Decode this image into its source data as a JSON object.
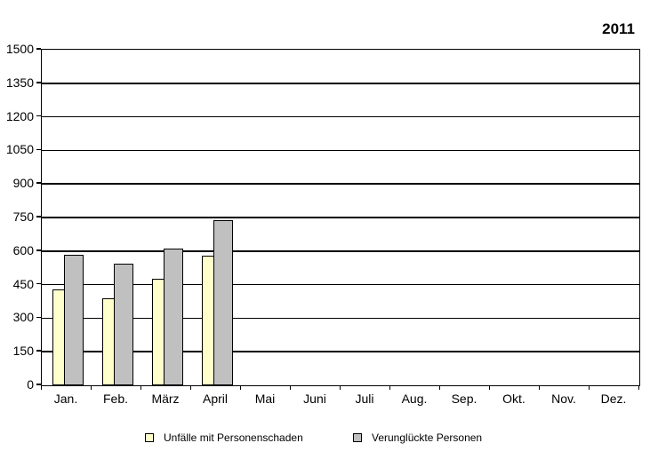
{
  "header": {
    "year_title": "2011"
  },
  "chart_data": {
    "type": "bar",
    "title": "2011",
    "categories": [
      "Jan.",
      "Feb.",
      "März",
      "April",
      "Mai",
      "Juni",
      "Juli",
      "Aug.",
      "Sep.",
      "Okt.",
      "Nov.",
      "Dez."
    ],
    "series": [
      {
        "name": "Unfälle mit Personenschaden",
        "color": "#FFFFCC",
        "values": [
          430,
          387,
          478,
          580,
          null,
          null,
          null,
          null,
          null,
          null,
          null,
          null
        ]
      },
      {
        "name": "Verunglückte Personen",
        "color": "#C0C0C0",
        "values": [
          583,
          545,
          612,
          737,
          null,
          null,
          null,
          null,
          null,
          null,
          null,
          null
        ]
      }
    ],
    "ylabel": "",
    "xlabel": "",
    "ylim": [
      0,
      1500
    ],
    "ytick_step": 150,
    "grid": "horizontal",
    "legend_position": "bottom",
    "bar_border_color": "#000000",
    "axis_color": "#000000",
    "background_color": "#FFFFFF"
  }
}
